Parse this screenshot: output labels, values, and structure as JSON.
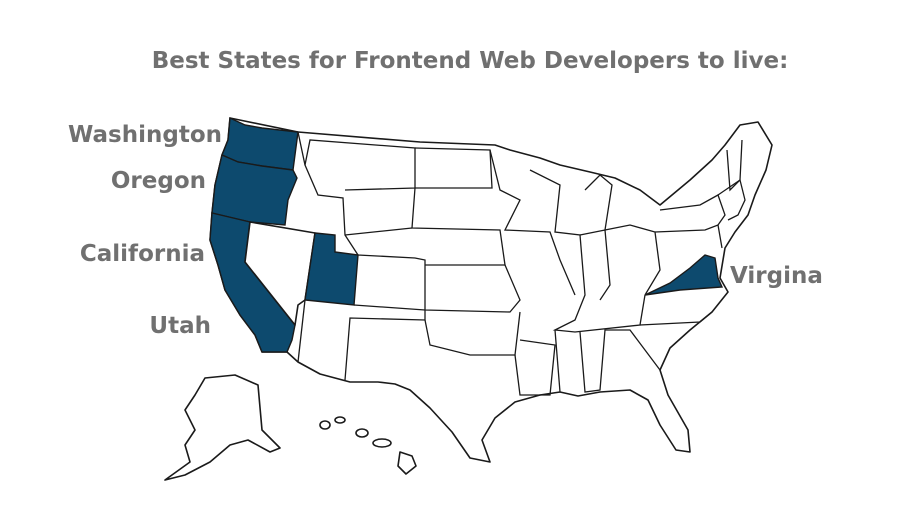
{
  "title": "Best States for Frontend Web Developers to live:",
  "highlight_color": "#0d4a6e",
  "labels": [
    "Washington",
    "Oregon",
    "California",
    "Utah",
    "Virgina"
  ]
}
